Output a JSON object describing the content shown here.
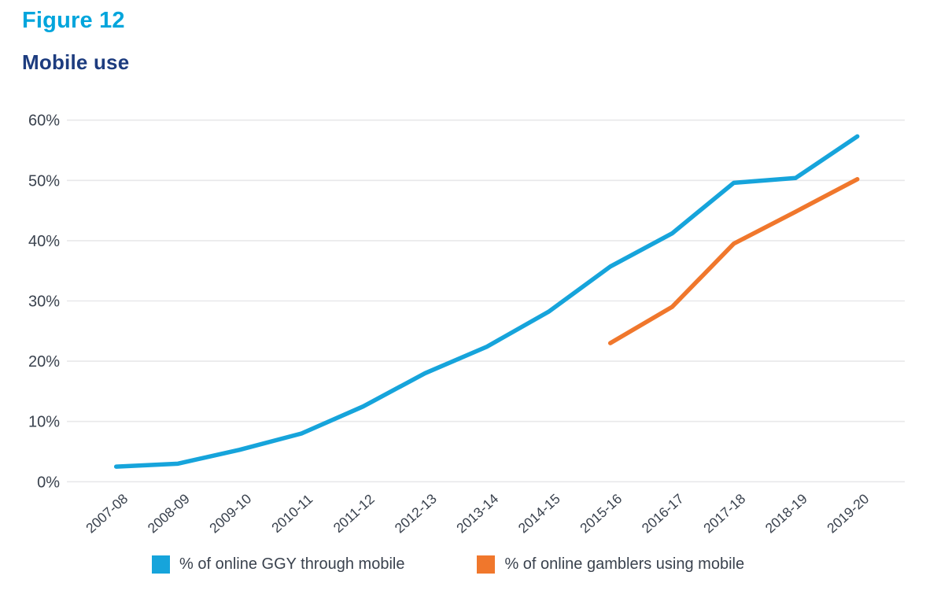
{
  "figure": {
    "label": "Figure 12",
    "title": "Mobile use"
  },
  "colors": {
    "figure_label": "#00A5DC",
    "title": "#1D3C7F",
    "tick_text": "#3A424E",
    "gridline": "#E8E8EA",
    "background": "#FFFFFF"
  },
  "chart_data": {
    "type": "line",
    "title": "Mobile use",
    "xlabel": "",
    "ylabel": "",
    "categories": [
      "2007-08",
      "2008-09",
      "2009-10",
      "2010-11",
      "2011-12",
      "2012-13",
      "2013-14",
      "2014-15",
      "2015-16",
      "2016-17",
      "2017-18",
      "2018-19",
      "2019-20"
    ],
    "series": [
      {
        "name": "% of online GGY through mobile",
        "color": "#16A4DB",
        "values": [
          2.5,
          3,
          5.3,
          8,
          12.5,
          18,
          22.4,
          28.2,
          35.7,
          41.2,
          49.6,
          50.4,
          57.3
        ]
      },
      {
        "name": "% of online gamblers using mobile",
        "color": "#F0772C",
        "values": [
          null,
          null,
          null,
          null,
          null,
          null,
          null,
          null,
          23,
          29,
          39.5,
          44.8,
          50.2
        ]
      }
    ],
    "ylim": [
      0,
      60
    ],
    "ytick_step": 10,
    "ytick_suffix": "%",
    "grid": true,
    "legend_position": "bottom"
  }
}
